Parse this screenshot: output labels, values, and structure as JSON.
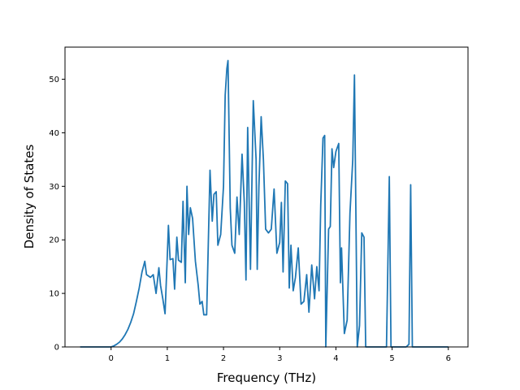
{
  "chart_data": {
    "type": "line",
    "title": "",
    "xlabel": "Frequency (THz)",
    "ylabel": "Density of States",
    "xlim": [
      -0.82,
      6.35
    ],
    "ylim": [
      0,
      56
    ],
    "xticks": [
      0,
      1,
      2,
      3,
      4,
      5,
      6
    ],
    "yticks": [
      0,
      10,
      20,
      30,
      40,
      50
    ],
    "grid": false,
    "legend": "none",
    "series": [
      {
        "color": "#1f77b4",
        "points": [
          [
            -0.55,
            0
          ],
          [
            0.0,
            0
          ],
          [
            0.05,
            0.2
          ],
          [
            0.1,
            0.5
          ],
          [
            0.15,
            0.9
          ],
          [
            0.2,
            1.5
          ],
          [
            0.25,
            2.3
          ],
          [
            0.3,
            3.3
          ],
          [
            0.35,
            4.6
          ],
          [
            0.4,
            6.2
          ],
          [
            0.45,
            8.5
          ],
          [
            0.5,
            11.0
          ],
          [
            0.55,
            14.0
          ],
          [
            0.6,
            16.0
          ],
          [
            0.63,
            13.5
          ],
          [
            0.7,
            13.0
          ],
          [
            0.75,
            13.5
          ],
          [
            0.8,
            10.0
          ],
          [
            0.85,
            14.8
          ],
          [
            0.88,
            11.5
          ],
          [
            0.92,
            9.0
          ],
          [
            0.96,
            6.2
          ],
          [
            1.0,
            17.0
          ],
          [
            1.02,
            22.7
          ],
          [
            1.05,
            16.3
          ],
          [
            1.1,
            16.5
          ],
          [
            1.13,
            10.8
          ],
          [
            1.17,
            20.5
          ],
          [
            1.2,
            16.2
          ],
          [
            1.25,
            15.8
          ],
          [
            1.28,
            27.2
          ],
          [
            1.32,
            12.0
          ],
          [
            1.35,
            30.0
          ],
          [
            1.38,
            21.0
          ],
          [
            1.41,
            26.0
          ],
          [
            1.45,
            24.0
          ],
          [
            1.5,
            16.0
          ],
          [
            1.55,
            11.5
          ],
          [
            1.58,
            8.0
          ],
          [
            1.62,
            8.5
          ],
          [
            1.65,
            6.0
          ],
          [
            1.7,
            6.0
          ],
          [
            1.76,
            33.0
          ],
          [
            1.8,
            23.5
          ],
          [
            1.83,
            28.5
          ],
          [
            1.87,
            29.0
          ],
          [
            1.9,
            19.0
          ],
          [
            1.95,
            21.0
          ],
          [
            2.0,
            30.0
          ],
          [
            2.03,
            47.0
          ],
          [
            2.06,
            52.0
          ],
          [
            2.08,
            53.5
          ],
          [
            2.12,
            26.0
          ],
          [
            2.15,
            19.0
          ],
          [
            2.2,
            17.5
          ],
          [
            2.24,
            28.0
          ],
          [
            2.28,
            21.0
          ],
          [
            2.33,
            36.0
          ],
          [
            2.37,
            27.0
          ],
          [
            2.4,
            12.5
          ],
          [
            2.43,
            41.0
          ],
          [
            2.48,
            14.5
          ],
          [
            2.53,
            46.0
          ],
          [
            2.58,
            35.0
          ],
          [
            2.6,
            14.5
          ],
          [
            2.63,
            30.0
          ],
          [
            2.67,
            43.0
          ],
          [
            2.71,
            35.0
          ],
          [
            2.75,
            22.0
          ],
          [
            2.8,
            21.3
          ],
          [
            2.85,
            22.0
          ],
          [
            2.9,
            29.5
          ],
          [
            2.95,
            17.5
          ],
          [
            3.0,
            19.5
          ],
          [
            3.03,
            27.0
          ],
          [
            3.06,
            14.0
          ],
          [
            3.1,
            31.0
          ],
          [
            3.14,
            30.5
          ],
          [
            3.17,
            11.0
          ],
          [
            3.2,
            19.0
          ],
          [
            3.24,
            10.5
          ],
          [
            3.28,
            13.0
          ],
          [
            3.33,
            18.5
          ],
          [
            3.38,
            8.0
          ],
          [
            3.43,
            8.5
          ],
          [
            3.48,
            13.5
          ],
          [
            3.52,
            6.5
          ],
          [
            3.57,
            15.3
          ],
          [
            3.62,
            9.0
          ],
          [
            3.66,
            15.0
          ],
          [
            3.7,
            10.5
          ],
          [
            3.73,
            26.5
          ],
          [
            3.77,
            39.0
          ],
          [
            3.8,
            39.5
          ],
          [
            3.82,
            0
          ],
          [
            3.87,
            22.0
          ],
          [
            3.9,
            22.5
          ],
          [
            3.93,
            37.0
          ],
          [
            3.96,
            33.5
          ],
          [
            4.0,
            36.5
          ],
          [
            4.05,
            38.0
          ],
          [
            4.08,
            12.0
          ],
          [
            4.1,
            18.5
          ],
          [
            4.15,
            2.5
          ],
          [
            4.2,
            5.0
          ],
          [
            4.25,
            25.0
          ],
          [
            4.3,
            35.0
          ],
          [
            4.33,
            50.8
          ],
          [
            4.38,
            0
          ],
          [
            4.42,
            4.0
          ],
          [
            4.46,
            21.3
          ],
          [
            4.5,
            20.5
          ],
          [
            4.53,
            0
          ],
          [
            4.9,
            0
          ],
          [
            4.95,
            31.8
          ],
          [
            4.98,
            0
          ],
          [
            5.25,
            0
          ],
          [
            5.3,
            0.5
          ],
          [
            5.33,
            30.3
          ],
          [
            5.36,
            0
          ],
          [
            6.0,
            0
          ]
        ]
      }
    ]
  }
}
